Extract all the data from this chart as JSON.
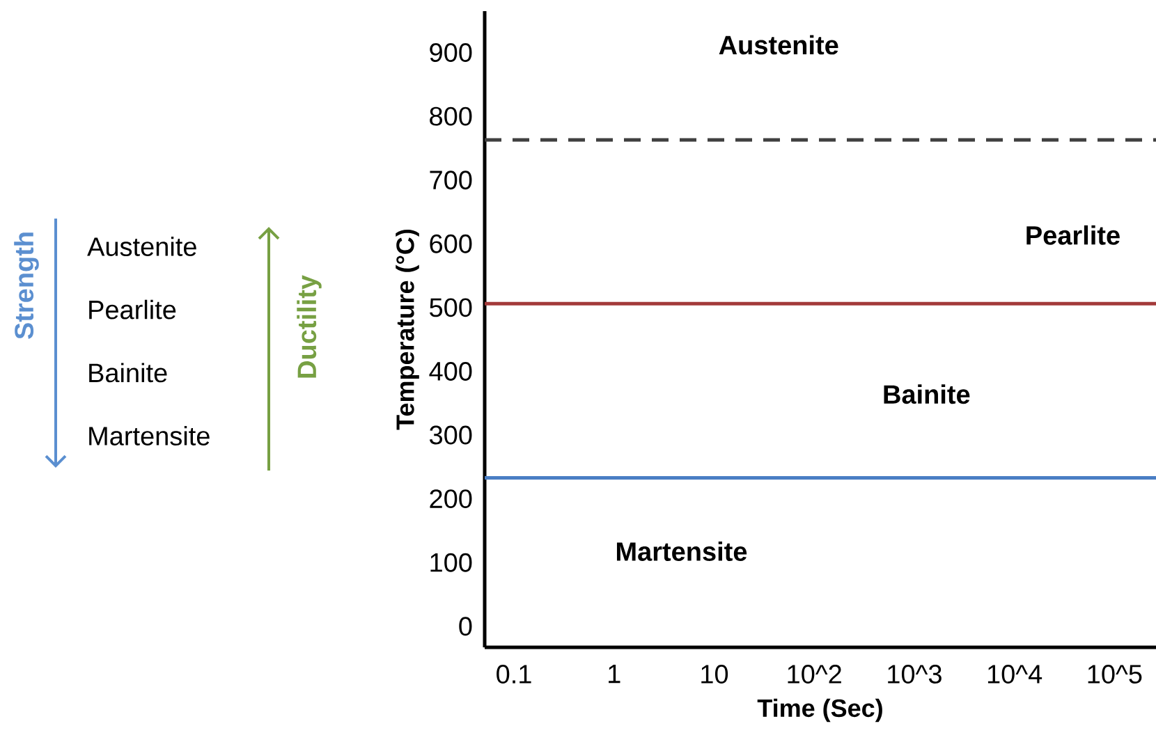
{
  "chart_data": {
    "type": "line",
    "xlabel": "Time (Sec)",
    "ylabel": "Temperature (°C)",
    "log": "x",
    "xlim": [
      0.051,
      260000
    ],
    "ylim": [
      -33,
      965
    ],
    "xticks": [
      {
        "value": 0.1,
        "label": "0.1"
      },
      {
        "value": 1,
        "label": "1"
      },
      {
        "value": 10,
        "label": "10"
      },
      {
        "value": 100,
        "label": "10^2"
      },
      {
        "value": 1000,
        "label": "10^3"
      },
      {
        "value": 10000,
        "label": "10^4"
      },
      {
        "value": 100000,
        "label": "10^5"
      }
    ],
    "yticks": [
      0,
      100,
      200,
      300,
      400,
      500,
      600,
      700,
      800,
      900
    ],
    "ref_lines": [
      {
        "axis": "y",
        "value": 763,
        "color": "#404040",
        "line_style": "dashed"
      },
      {
        "axis": "y",
        "value": 506,
        "color": "#a33a3a",
        "line_style": "solid"
      },
      {
        "axis": "y",
        "value": 233,
        "color": "#4a7ec4",
        "line_style": "solid"
      }
    ],
    "annotations": [
      "Austenite",
      "Pearlite",
      "Bainite",
      "Martensite",
      "Strength",
      "Austenite",
      "Pearlite",
      "Bainite",
      "Martensite",
      "Ductility"
    ]
  }
}
